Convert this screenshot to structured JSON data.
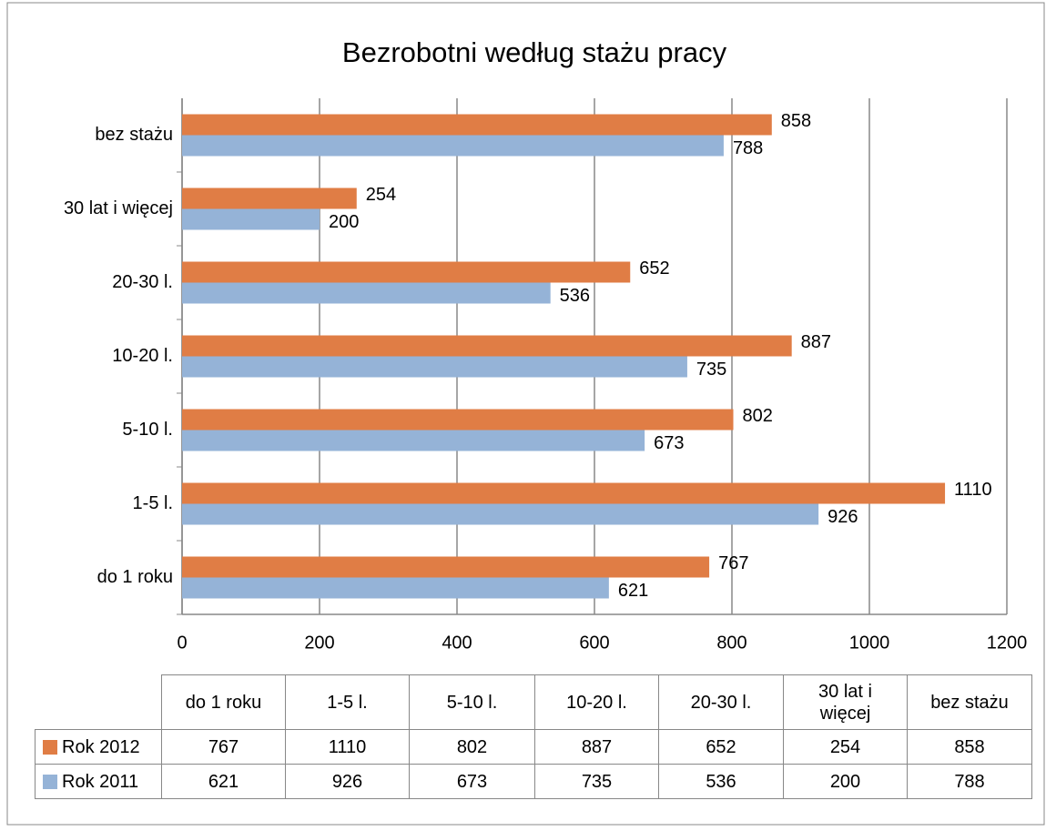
{
  "chart_data": {
    "type": "bar",
    "orientation": "horizontal",
    "title": "Bezrobotni według stażu pracy",
    "categories": [
      "do 1 roku",
      "1-5 l.",
      "5-10 l.",
      "10-20 l.",
      "20-30 l.",
      "30 lat i więcej",
      "bez stażu"
    ],
    "series": [
      {
        "name": "Rok 2012",
        "color": "#e07d45",
        "values": [
          767,
          1110,
          802,
          887,
          652,
          254,
          858
        ]
      },
      {
        "name": "Rok 2011",
        "color": "#95b3d7",
        "values": [
          621,
          926,
          673,
          735,
          536,
          200,
          788
        ]
      }
    ],
    "xlim": [
      0,
      1200
    ],
    "xticks": [
      0,
      200,
      400,
      600,
      800,
      1000,
      1200
    ],
    "grid": true,
    "data_table": true
  }
}
